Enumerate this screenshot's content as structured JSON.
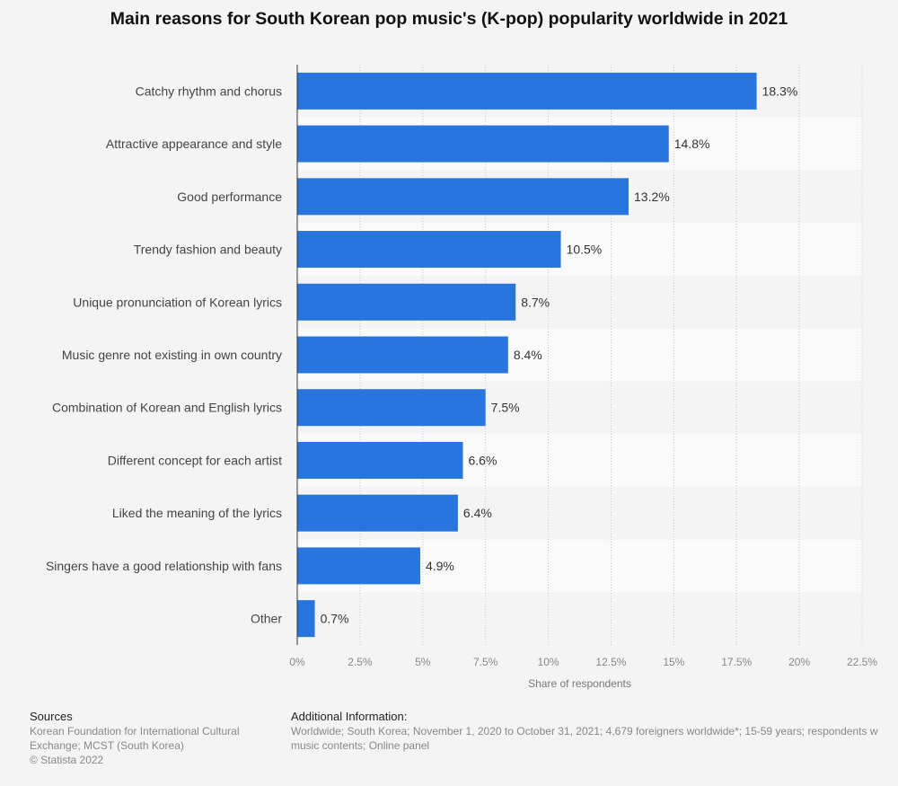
{
  "title": "Main reasons for South Korean pop music's (K-pop) popularity worldwide in 2021",
  "chart_data": {
    "type": "bar",
    "orientation": "horizontal",
    "title": "Main reasons for South Korean pop music's (K-pop) popularity worldwide in 2021",
    "xlabel": "Share of respondents",
    "ylabel": "",
    "xlim": [
      0,
      22.5
    ],
    "grid": true,
    "categories": [
      "Catchy rhythm and chorus",
      "Attractive appearance and style",
      "Good performance",
      "Trendy fashion and beauty",
      "Unique pronunciation of Korean lyrics",
      "Music genre not existing in own country",
      "Combination of Korean and English lyrics",
      "Different concept for each artist",
      "Liked the meaning of the lyrics",
      "Singers have a good relationship with fans",
      "Other"
    ],
    "values": [
      18.3,
      14.8,
      13.2,
      10.5,
      8.7,
      8.4,
      7.5,
      6.6,
      6.4,
      4.9,
      0.7
    ],
    "value_labels": [
      "18.3%",
      "14.8%",
      "13.2%",
      "10.5%",
      "8.7%",
      "8.4%",
      "7.5%",
      "6.6%",
      "6.4%",
      "4.9%",
      "0.7%"
    ],
    "ticks": [
      0,
      2.5,
      5,
      7.5,
      10,
      12.5,
      15,
      17.5,
      20,
      22.5
    ],
    "tick_labels": [
      "0%",
      "2.5%",
      "5%",
      "7.5%",
      "10%",
      "12.5%",
      "15%",
      "17.5%",
      "20%",
      "22.5%"
    ],
    "bar_color": "#2876dd"
  },
  "footer": {
    "sources_heading": "Sources",
    "sources_line1": "Korean Foundation for International Cultural",
    "sources_line2": "Exchange; MCST (South Korea)",
    "copyright": "© Statista 2022",
    "additional_heading": "Additional Information:",
    "additional_line1": "Worldwide; South Korea; November 1, 2020 to October 31, 2021; 4,679 foreigners worldwide*; 15-59 years; respondents w",
    "additional_line2": "music contents; Online panel"
  }
}
